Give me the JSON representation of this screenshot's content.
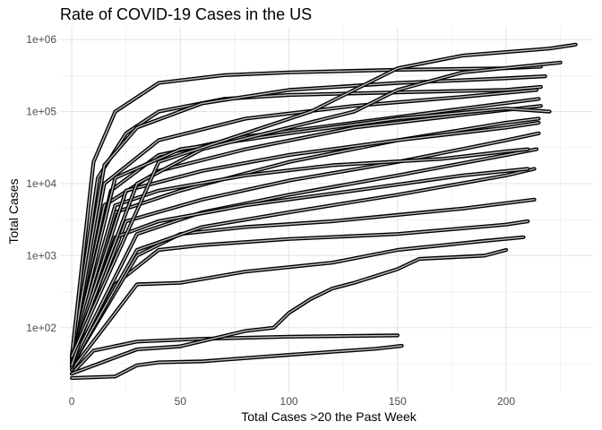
{
  "chart_data": {
    "type": "line",
    "title": "Rate of COVID-19 Cases in the US",
    "xlabel": "Total Cases >20 the Past Week",
    "ylabel": "Total Cases",
    "x_scale": "linear",
    "y_scale": "log10",
    "xlim": [
      -5,
      240
    ],
    "ylim": [
      13,
      1500000
    ],
    "x_ticks": [
      0,
      50,
      100,
      150,
      200
    ],
    "y_ticks": [
      100,
      1000,
      10000,
      100000,
      1000000
    ],
    "y_tick_labels": [
      "1e+02",
      "1e+03",
      "1e+04",
      "1e+05",
      "1e+06"
    ],
    "grid": true,
    "legend": "none",
    "line_color": "#000000",
    "fill_color": "#bebebe",
    "series": [
      {
        "values": [
          [
            0,
            20
          ],
          [
            20,
            21
          ],
          [
            30,
            30
          ],
          [
            40,
            33
          ],
          [
            60,
            34
          ],
          [
            100,
            42
          ],
          [
            140,
            51
          ],
          [
            152,
            56
          ]
        ]
      },
      {
        "values": [
          [
            0,
            23
          ],
          [
            10,
            48
          ],
          [
            30,
            64
          ],
          [
            60,
            70
          ],
          [
            100,
            75
          ],
          [
            150,
            78
          ]
        ]
      },
      {
        "values": [
          [
            0,
            23
          ],
          [
            30,
            50
          ],
          [
            50,
            55
          ],
          [
            80,
            90
          ],
          [
            93,
            100
          ],
          [
            100,
            160
          ],
          [
            110,
            250
          ],
          [
            120,
            350
          ],
          [
            130,
            420
          ],
          [
            150,
            650
          ],
          [
            160,
            900
          ],
          [
            190,
            1000
          ],
          [
            200,
            1200
          ]
        ]
      },
      {
        "values": [
          [
            0,
            26
          ],
          [
            30,
            400
          ],
          [
            50,
            420
          ],
          [
            80,
            600
          ],
          [
            120,
            800
          ],
          [
            150,
            1200
          ],
          [
            190,
            1600
          ],
          [
            208,
            1800
          ]
        ]
      },
      {
        "values": [
          [
            0,
            28
          ],
          [
            20,
            400
          ],
          [
            40,
            1200
          ],
          [
            60,
            1400
          ],
          [
            100,
            1700
          ],
          [
            150,
            2000
          ],
          [
            200,
            2700
          ],
          [
            210,
            3000
          ]
        ]
      },
      {
        "values": [
          [
            0,
            30
          ],
          [
            30,
            1000
          ],
          [
            50,
            2000
          ],
          [
            80,
            2500
          ],
          [
            120,
            3000
          ],
          [
            180,
            4500
          ],
          [
            213,
            6000
          ]
        ]
      },
      {
        "values": [
          [
            0,
            30
          ],
          [
            30,
            1200
          ],
          [
            60,
            2500
          ],
          [
            100,
            4000
          ],
          [
            150,
            7000
          ],
          [
            200,
            13000
          ],
          [
            213,
            16000
          ]
        ]
      },
      {
        "values": [
          [
            0,
            32
          ],
          [
            30,
            2000
          ],
          [
            60,
            4000
          ],
          [
            100,
            7000
          ],
          [
            150,
            13000
          ],
          [
            200,
            25000
          ],
          [
            214,
            30000
          ]
        ]
      },
      {
        "values": [
          [
            0,
            34
          ],
          [
            25,
            3000
          ],
          [
            60,
            6000
          ],
          [
            100,
            11000
          ],
          [
            150,
            20000
          ],
          [
            200,
            40000
          ],
          [
            215,
            50000
          ]
        ]
      },
      {
        "values": [
          [
            0,
            35
          ],
          [
            20,
            4000
          ],
          [
            50,
            8000
          ],
          [
            100,
            20000
          ],
          [
            150,
            40000
          ],
          [
            200,
            70000
          ],
          [
            215,
            80000
          ]
        ]
      },
      {
        "values": [
          [
            0,
            36
          ],
          [
            15,
            5000
          ],
          [
            40,
            15000
          ],
          [
            80,
            30000
          ],
          [
            130,
            60000
          ],
          [
            180,
            90000
          ],
          [
            216,
            120000
          ]
        ]
      },
      {
        "values": [
          [
            0,
            37
          ],
          [
            18,
            8000
          ],
          [
            40,
            25000
          ],
          [
            80,
            45000
          ],
          [
            130,
            70000
          ],
          [
            180,
            110000
          ],
          [
            215,
            150000
          ]
        ]
      },
      {
        "values": [
          [
            0,
            38
          ],
          [
            15,
            10000
          ],
          [
            40,
            40000
          ],
          [
            80,
            80000
          ],
          [
            130,
            120000
          ],
          [
            180,
            160000
          ],
          [
            214,
            200000
          ]
        ]
      },
      {
        "values": [
          [
            0,
            40
          ],
          [
            20,
            12000
          ],
          [
            50,
            30000
          ],
          [
            100,
            50000
          ],
          [
            150,
            80000
          ],
          [
            200,
            110000
          ],
          [
            220,
            100000
          ]
        ]
      },
      {
        "values": [
          [
            0,
            40
          ],
          [
            12,
            12000
          ],
          [
            25,
            50000
          ],
          [
            40,
            100000
          ],
          [
            70,
            150000
          ],
          [
            100,
            170000
          ],
          [
            150,
            185000
          ],
          [
            200,
            200000
          ],
          [
            216,
            220000
          ]
        ]
      },
      {
        "values": [
          [
            0,
            40
          ],
          [
            20,
            5000
          ],
          [
            40,
            8000
          ],
          [
            80,
            13000
          ],
          [
            120,
            18000
          ],
          [
            170,
            22000
          ],
          [
            200,
            28000
          ],
          [
            210,
            30000
          ]
        ]
      },
      {
        "values": [
          [
            0,
            30
          ],
          [
            20,
            1800
          ],
          [
            40,
            3000
          ],
          [
            80,
            5000
          ],
          [
            130,
            8000
          ],
          [
            180,
            13000
          ],
          [
            210,
            16000
          ]
        ]
      },
      {
        "values": [
          [
            0,
            38
          ],
          [
            25,
            8000
          ],
          [
            60,
            15000
          ],
          [
            100,
            25000
          ],
          [
            150,
            40000
          ],
          [
            200,
            60000
          ],
          [
            215,
            70000
          ]
        ]
      },
      {
        "values": [
          [
            0,
            40
          ],
          [
            15,
            18000
          ],
          [
            30,
            60000
          ],
          [
            60,
            130000
          ],
          [
            100,
            200000
          ],
          [
            150,
            250000
          ],
          [
            200,
            290000
          ],
          [
            218,
            310000
          ]
        ]
      },
      {
        "values": [
          [
            0,
            40
          ],
          [
            10,
            20000
          ],
          [
            20,
            100000
          ],
          [
            40,
            250000
          ],
          [
            70,
            320000
          ],
          [
            100,
            350000
          ],
          [
            150,
            380000
          ],
          [
            200,
            400000
          ],
          [
            216,
            420000
          ]
        ]
      },
      {
        "values": [
          [
            0,
            40
          ],
          [
            30,
            10000
          ],
          [
            60,
            30000
          ],
          [
            100,
            60000
          ],
          [
            130,
            100000
          ],
          [
            150,
            200000
          ],
          [
            180,
            350000
          ],
          [
            225,
            480000
          ]
        ]
      },
      {
        "values": [
          [
            0,
            40
          ],
          [
            40,
            20000
          ],
          [
            80,
            50000
          ],
          [
            110,
            100000
          ],
          [
            130,
            200000
          ],
          [
            150,
            400000
          ],
          [
            180,
            600000
          ],
          [
            220,
            750000
          ],
          [
            232,
            850000
          ]
        ]
      }
    ]
  }
}
